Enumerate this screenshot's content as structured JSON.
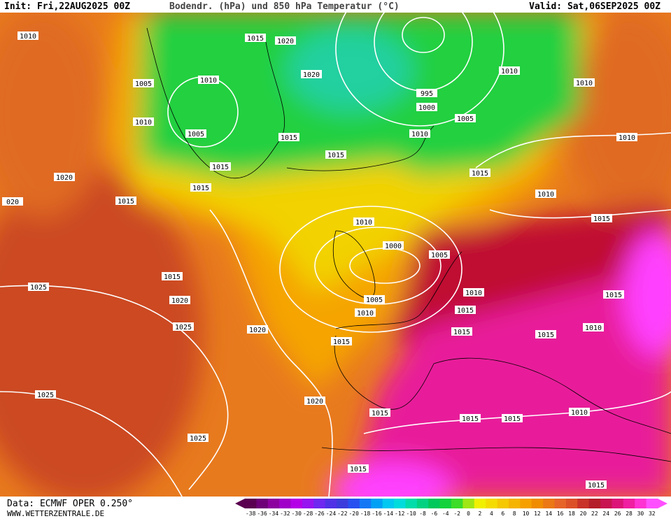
{
  "header": {
    "init": "Init: Fri,22AUG2025 00Z",
    "title": "Bodendr. (hPa) und 850 hPa Temperatur (°C)",
    "valid": "Valid: Sat,06SEP2025 00Z"
  },
  "isobar_labels": [
    1010,
    1015,
    1020,
    1005,
    1010,
    1020,
    995,
    1000,
    1010,
    1010,
    1010,
    1005,
    1015,
    1015,
    1010,
    1005,
    1015,
    1015,
    1015,
    1020,
    1015,
    "020",
    1010,
    1010,
    1015,
    1010,
    1000,
    1005,
    1015,
    1025,
    1020,
    1010,
    1005,
    1010,
    1015,
    1025,
    1020,
    1015,
    1015,
    1015,
    1010,
    1015,
    1025,
    1020,
    1015,
    1025,
    1015,
    1015,
    1010,
    1015,
    1015
  ],
  "colorbar": {
    "labels": [
      -38,
      -36,
      -34,
      -32,
      -30,
      -28,
      -26,
      -24,
      -22,
      -20,
      -18,
      -16,
      -14,
      -12,
      -10,
      -8,
      -6,
      -4,
      -2,
      0,
      2,
      4,
      6,
      8,
      10,
      12,
      14,
      16,
      18,
      20,
      22,
      24,
      26,
      28,
      30,
      32
    ],
    "colors": [
      "#5a0050",
      "#6e0078",
      "#8c00a0",
      "#a000c8",
      "#b400e6",
      "#9614f0",
      "#6e28f0",
      "#5032e6",
      "#3c3cdc",
      "#2850f0",
      "#1478f5",
      "#00a0f5",
      "#00c8f0",
      "#00dcdc",
      "#00dcaa",
      "#00d282",
      "#00c85a",
      "#14d23c",
      "#3cdc28",
      "#a0e614",
      "#f0f000",
      "#f5dc00",
      "#f5c800",
      "#f5b400",
      "#f5a000",
      "#f08c00",
      "#eb7814",
      "#e66428",
      "#dc5028",
      "#c83228",
      "#b41e28",
      "#c81450",
      "#dc1478",
      "#f01ea0",
      "#ff32d2",
      "#ff50ff"
    ]
  },
  "footer": {
    "data": "Data: ECMWF OPER 0.250°",
    "url": "WWW.WETTERZENTRALE.DE"
  }
}
